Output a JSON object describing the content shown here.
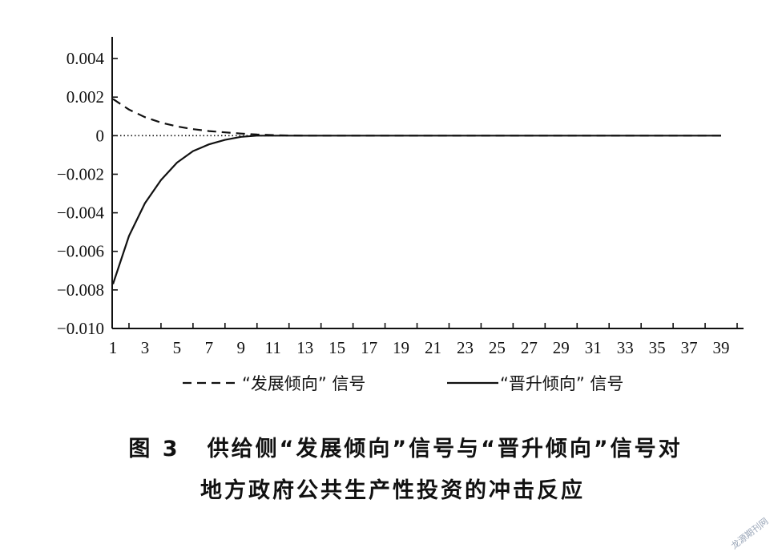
{
  "chart_data": {
    "type": "line",
    "title": "",
    "xlabel": "",
    "ylabel": "",
    "xlim": [
      1,
      40
    ],
    "ylim": [
      -0.01,
      0.005
    ],
    "x_ticks": [
      "1",
      "3",
      "5",
      "7",
      "9",
      "11",
      "13",
      "15",
      "17",
      "19",
      "21",
      "23",
      "25",
      "27",
      "29",
      "31",
      "33",
      "35",
      "37",
      "39"
    ],
    "y_ticks": [
      "0.004",
      "0.002",
      "0",
      "−0.002",
      "−0.004",
      "−0.006",
      "−0.008",
      "−0.010"
    ],
    "y_tick_values": [
      0.004,
      0.002,
      0,
      -0.002,
      -0.004,
      -0.006,
      -0.008,
      -0.01
    ],
    "grid": false,
    "legend_position": "bottom",
    "series": [
      {
        "name": "“发展倾向” 信号",
        "style": "dashed",
        "color": "#111111",
        "x": [
          1,
          2,
          3,
          4,
          5,
          6,
          7,
          8,
          9,
          10,
          11,
          12,
          13,
          14,
          15,
          16,
          17,
          18,
          19,
          20,
          21,
          22,
          23,
          24,
          25,
          26,
          27,
          28,
          29,
          30,
          31,
          32,
          33,
          34,
          35,
          36,
          37,
          38,
          39
        ],
        "values": [
          0.0019,
          0.00135,
          0.00096,
          0.00068,
          0.00048,
          0.00034,
          0.00024,
          0.00017,
          0.00011,
          6e-05,
          3e-05,
          1e-05,
          0,
          0,
          0,
          0,
          0,
          0,
          0,
          0,
          0,
          0,
          0,
          0,
          0,
          0,
          0,
          0,
          0,
          0,
          0,
          0,
          0,
          0,
          0,
          0,
          0,
          0,
          0
        ]
      },
      {
        "name": "“晋升倾向” 信号",
        "style": "solid",
        "color": "#111111",
        "x": [
          1,
          2,
          3,
          4,
          5,
          6,
          7,
          8,
          9,
          10,
          11,
          12,
          13,
          14,
          15,
          16,
          17,
          18,
          19,
          20,
          21,
          22,
          23,
          24,
          25,
          26,
          27,
          28,
          29,
          30,
          31,
          32,
          33,
          34,
          35,
          36,
          37,
          38,
          39
        ],
        "values": [
          -0.0077,
          -0.0052,
          -0.0035,
          -0.0023,
          -0.0014,
          -0.0008,
          -0.00045,
          -0.00022,
          -6e-05,
          0,
          0,
          0,
          0,
          0,
          0,
          0,
          0,
          0,
          0,
          0,
          0,
          0,
          0,
          0,
          0,
          0,
          0,
          0,
          0,
          0,
          0,
          0,
          0,
          0,
          0,
          0,
          0,
          0,
          0
        ]
      }
    ],
    "zero_line": {
      "style": "dotted",
      "from_x": 1,
      "to_x": 12
    }
  },
  "caption": {
    "figure_number": "图 3",
    "line1": "供给侧“发展倾向”信号与“晋升倾向”信号对",
    "line2": "地方政府公共生产性投资的冲击反应"
  },
  "watermark": "龙源期刊网"
}
